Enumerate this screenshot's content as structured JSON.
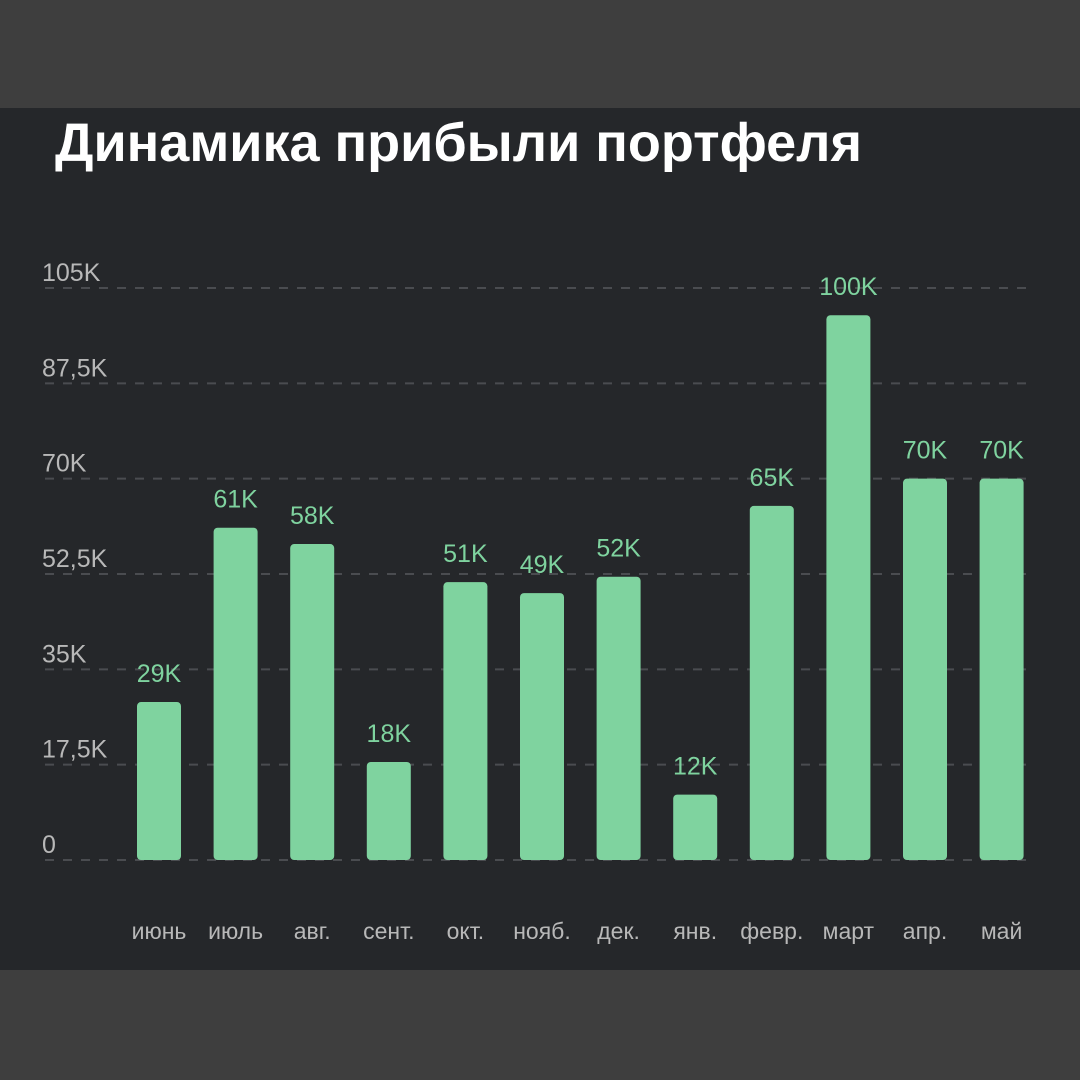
{
  "title": "Динамика прибыли портфеля",
  "colors": {
    "background": "#25272a",
    "outer_frame": "#3e3e3e",
    "bar": "#7fd39f",
    "value_label": "#7fd39f",
    "axis_label": "#b8b8b8",
    "grid": "#4a4c50",
    "title": "#ffffff"
  },
  "chart_data": {
    "type": "bar",
    "title": "Динамика прибыли портфеля",
    "xlabel": "",
    "ylabel": "",
    "ylim": [
      0,
      105000
    ],
    "grid": true,
    "grid_style": "dashed",
    "categories": [
      "июнь",
      "июль",
      "авг.",
      "сент.",
      "окт.",
      "нояб.",
      "дек.",
      "янв.",
      "февр.",
      "март",
      "апр.",
      "май"
    ],
    "values": [
      29000,
      61000,
      58000,
      18000,
      51000,
      49000,
      52000,
      12000,
      65000,
      100000,
      70000,
      70000
    ],
    "value_labels": [
      "29K",
      "61K",
      "58K",
      "18K",
      "51K",
      "49K",
      "52K",
      "12K",
      "65K",
      "100K",
      "70K",
      "70K"
    ],
    "y_ticks": [
      0,
      17500,
      35000,
      52500,
      70000,
      87500,
      105000
    ],
    "y_tick_labels": [
      "0",
      "17,5K",
      "35K",
      "52,5K",
      "70K",
      "87,5K",
      "105K"
    ]
  }
}
